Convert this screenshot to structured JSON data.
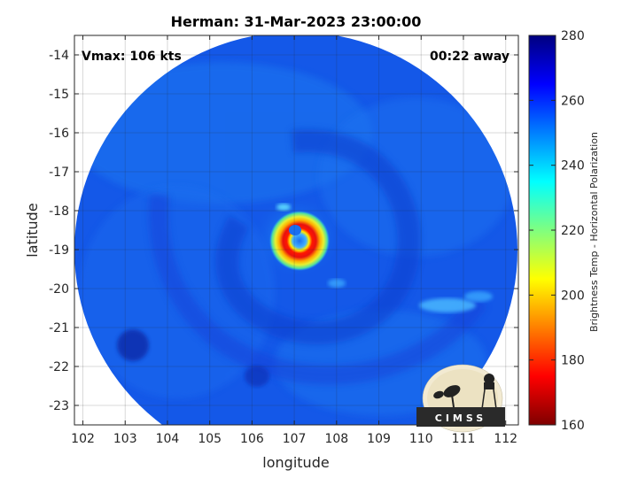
{
  "chart_data": {
    "type": "heatmap",
    "title": "Herman: 31-Mar-2023 23:00:00",
    "xlabel": "longitude",
    "ylabel": "latitude",
    "xlim": [
      101.8,
      112.3
    ],
    "ylim": [
      -23.5,
      -13.5
    ],
    "xticks": [
      "102",
      "103",
      "104",
      "105",
      "106",
      "107",
      "108",
      "109",
      "110",
      "111",
      "112"
    ],
    "xtick_values": [
      102,
      103,
      104,
      105,
      106,
      107,
      108,
      109,
      110,
      111,
      112
    ],
    "yticks": [
      "-14",
      "-15",
      "-16",
      "-17",
      "-18",
      "-19",
      "-20",
      "-21",
      "-22",
      "-23"
    ],
    "ytick_values": [
      -14,
      -15,
      -16,
      -17,
      -18,
      -19,
      -20,
      -21,
      -22,
      -23
    ],
    "grid": true,
    "colorbar": {
      "label": "Brightness Temp - Horizontal Polarization",
      "range": [
        160,
        280
      ],
      "ticks": [
        "280",
        "260",
        "240",
        "220",
        "200",
        "180",
        "160"
      ],
      "tick_values": [
        280,
        260,
        240,
        220,
        200,
        180,
        160
      ],
      "colormap": "jet"
    },
    "storm_center": {
      "lon": 107.1,
      "lat": -18.5
    },
    "annotations": {
      "vmax": "Vmax: 106 kts",
      "time_offset": "00:22 away"
    }
  },
  "logo": {
    "text": "CIMSS"
  },
  "colors": {
    "background_scan": "#1560e8",
    "eye_wall": "#d81010",
    "eye": "#1a7df0"
  }
}
